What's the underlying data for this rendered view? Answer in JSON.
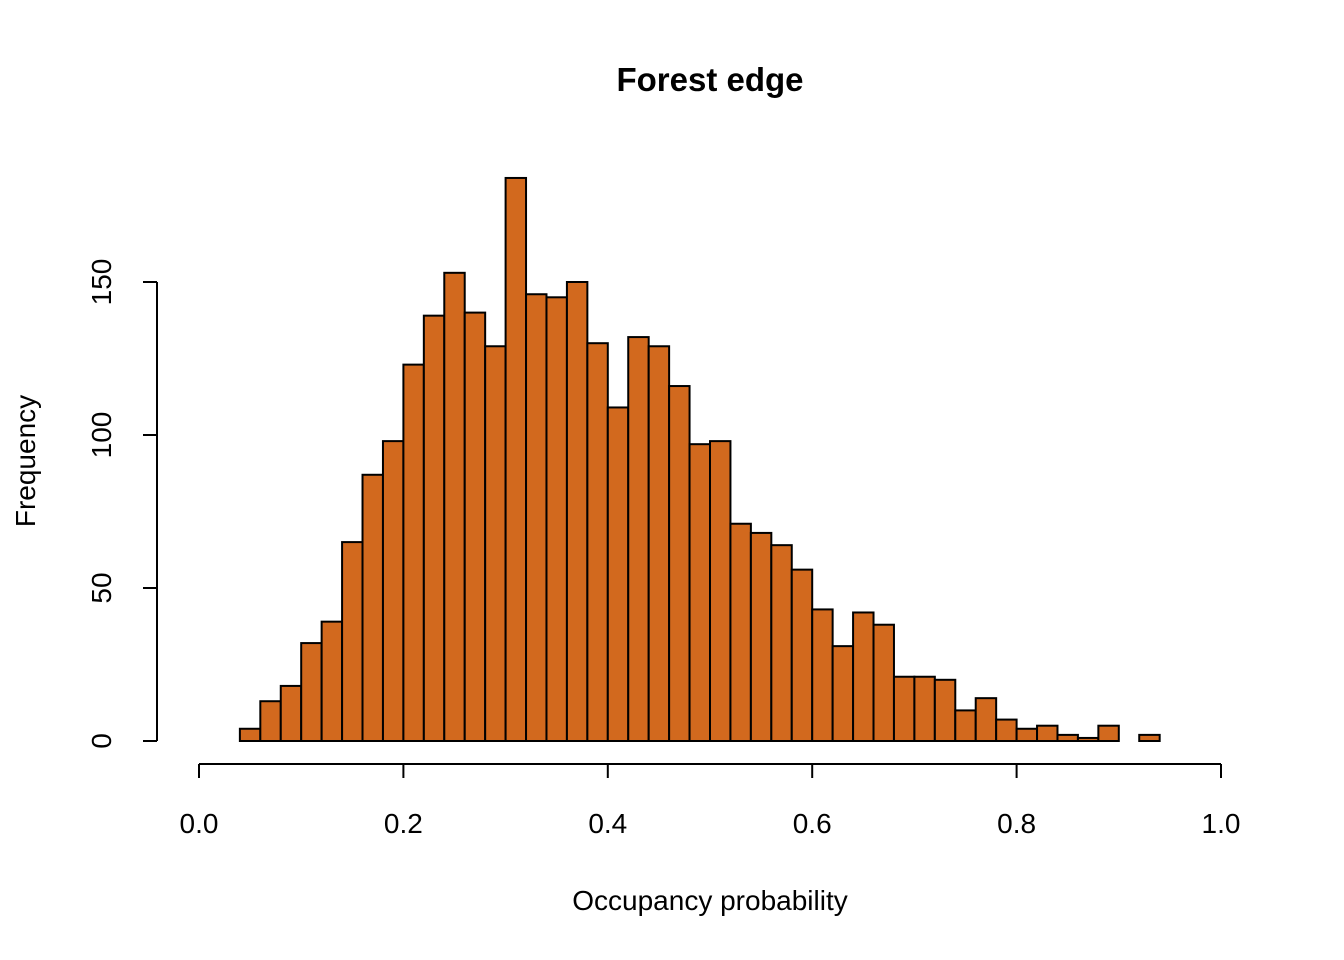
{
  "chart_data": {
    "type": "bar",
    "title": "Forest edge",
    "xlabel": "Occupancy probability",
    "ylabel": "Frequency",
    "bar_color": "#D2691E",
    "edge_color": "#000000",
    "xlim": [
      0.0,
      1.0
    ],
    "ylim": [
      0,
      150
    ],
    "x_ticks": [
      0.0,
      0.2,
      0.4,
      0.6,
      0.8,
      1.0
    ],
    "x_tick_labels": [
      "0.0",
      "0.2",
      "0.4",
      "0.6",
      "0.8",
      "1.0"
    ],
    "y_ticks": [
      0,
      50,
      100,
      150
    ],
    "y_tick_labels": [
      "0",
      "50",
      "100",
      "150"
    ],
    "bin_width": 0.02,
    "bin_starts": [
      0.04,
      0.06,
      0.08,
      0.1,
      0.12,
      0.14,
      0.16,
      0.18,
      0.2,
      0.22,
      0.24,
      0.26,
      0.28,
      0.3,
      0.32,
      0.34,
      0.36,
      0.38,
      0.4,
      0.42,
      0.44,
      0.46,
      0.48,
      0.5,
      0.52,
      0.54,
      0.56,
      0.58,
      0.6,
      0.62,
      0.64,
      0.66,
      0.68,
      0.7,
      0.72,
      0.74,
      0.76,
      0.78,
      0.8,
      0.82,
      0.84,
      0.86,
      0.88,
      0.9,
      0.92
    ],
    "values": [
      4,
      13,
      18,
      32,
      39,
      65,
      87,
      98,
      123,
      139,
      153,
      140,
      129,
      184,
      146,
      145,
      150,
      130,
      109,
      132,
      129,
      116,
      97,
      98,
      71,
      68,
      64,
      56,
      43,
      31,
      42,
      38,
      21,
      21,
      20,
      10,
      14,
      7,
      4,
      5,
      2,
      1,
      5,
      0,
      2
    ]
  }
}
